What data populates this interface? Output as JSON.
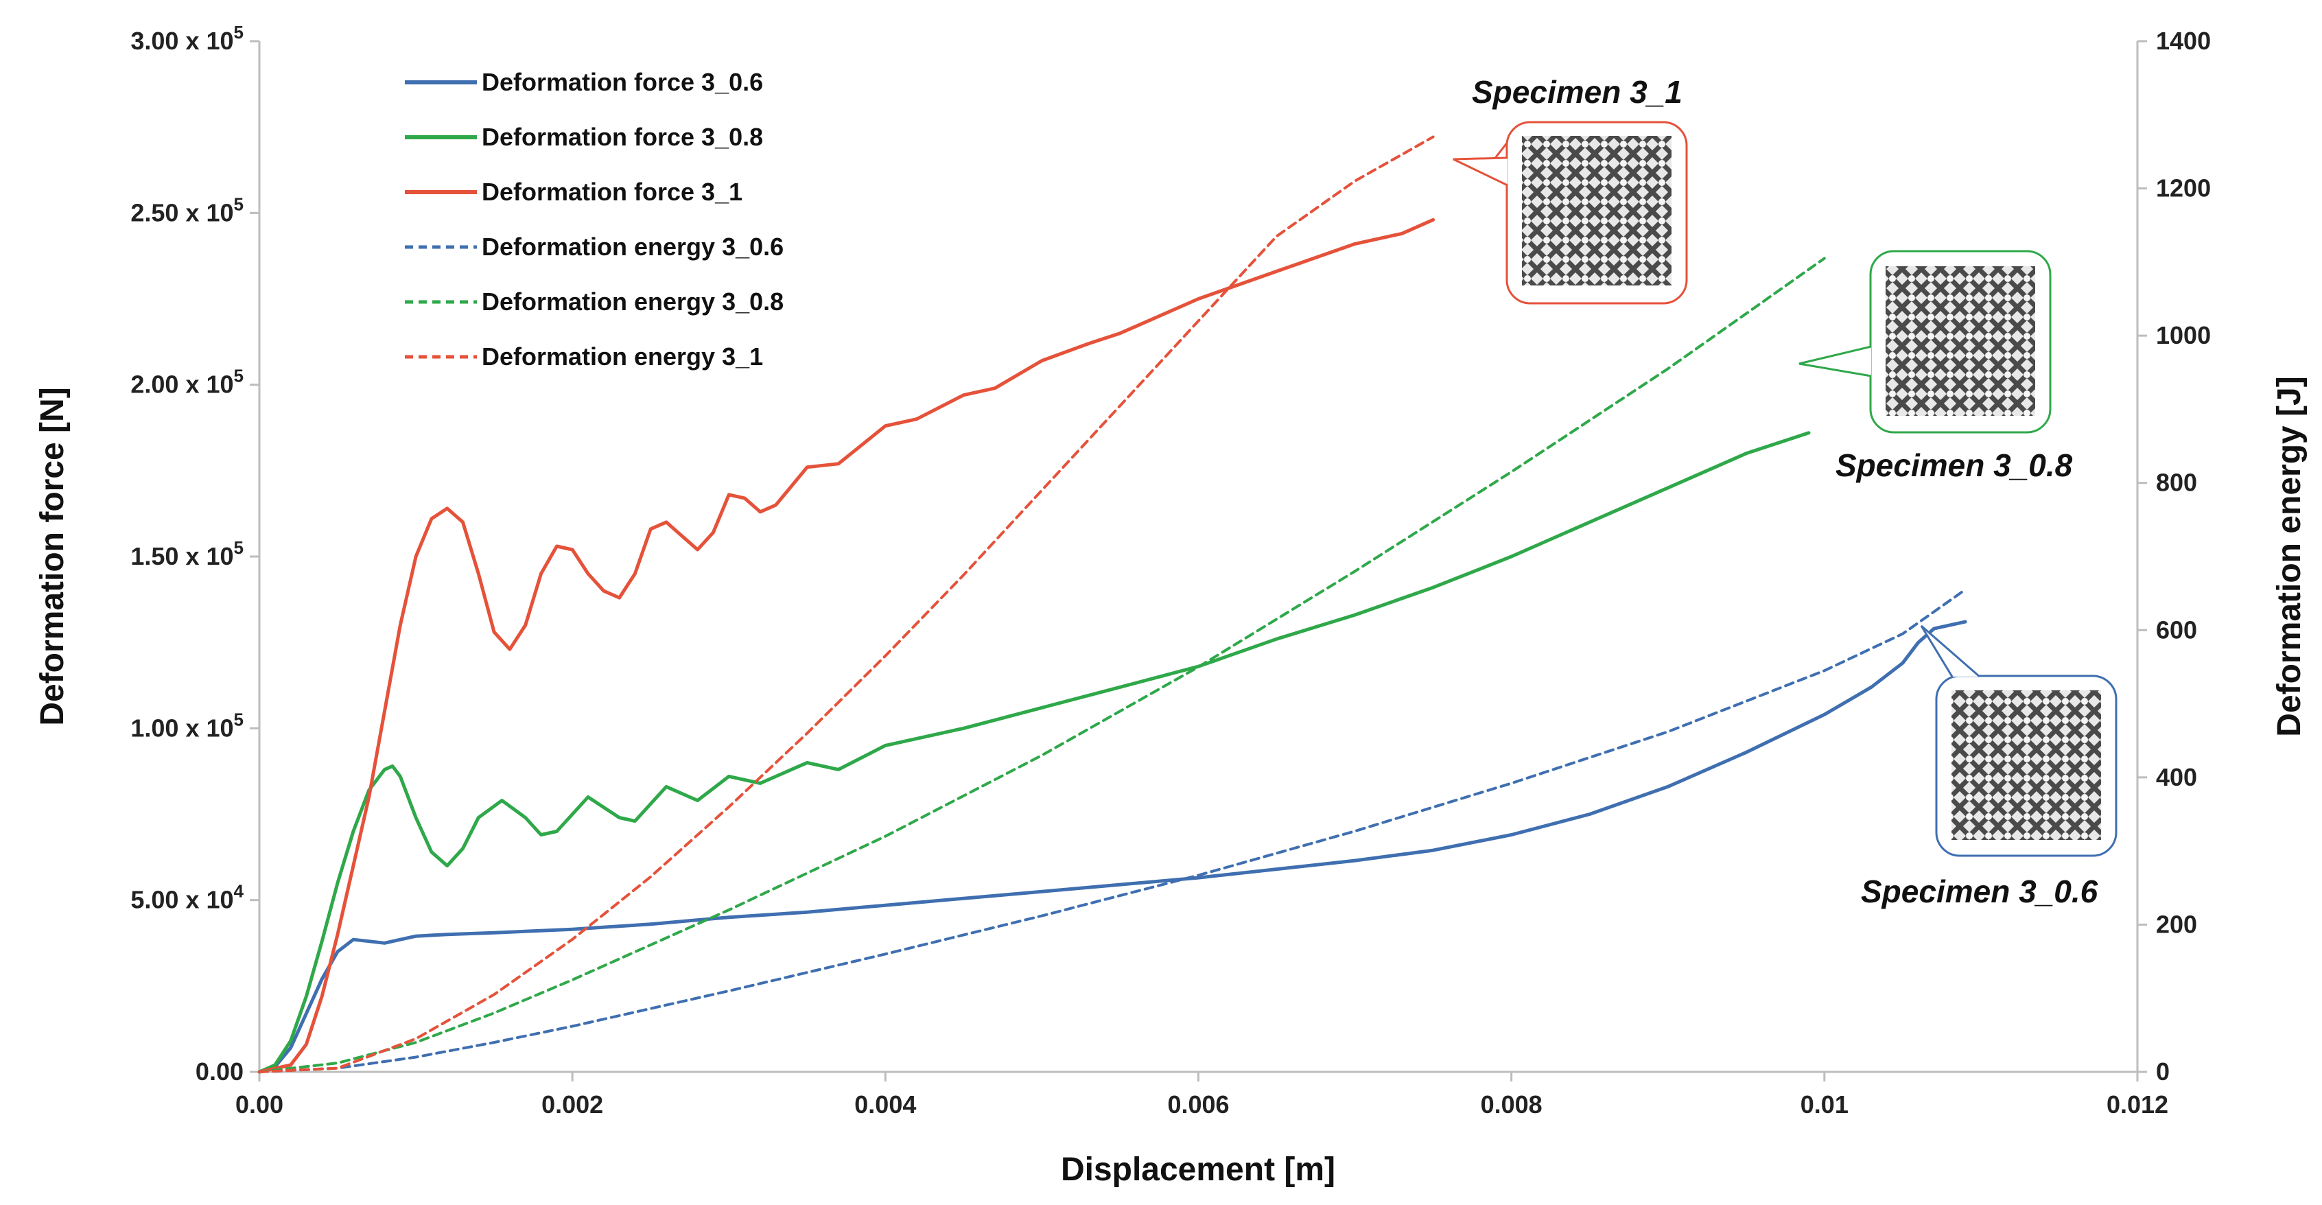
{
  "chart_data": {
    "type": "line",
    "xlabel": "Displacement [m]",
    "ylabel": "Deformation force [N]",
    "y2label": "Deformation energy [J]",
    "xlim": [
      0,
      0.012
    ],
    "ylim": [
      0,
      300000
    ],
    "y2lim": [
      0,
      1400
    ],
    "grid": false,
    "legend_position": "top-left",
    "x_ticks": [
      {
        "value": 0,
        "label": "0.00"
      },
      {
        "value": 0.002,
        "label": "0.002"
      },
      {
        "value": 0.004,
        "label": "0.004"
      },
      {
        "value": 0.006,
        "label": "0.006"
      },
      {
        "value": 0.008,
        "label": "0.008"
      },
      {
        "value": 0.01,
        "label": "0.01"
      },
      {
        "value": 0.012,
        "label": "0.012"
      }
    ],
    "y_ticks": [
      {
        "value": 0,
        "mant": "0.00",
        "exp": ""
      },
      {
        "value": 50000,
        "mant": "5.00 x 10",
        "exp": "4"
      },
      {
        "value": 100000,
        "mant": "1.00 x 10",
        "exp": "5"
      },
      {
        "value": 150000,
        "mant": "1.50 x 10",
        "exp": "5"
      },
      {
        "value": 200000,
        "mant": "2.00 x 10",
        "exp": "5"
      },
      {
        "value": 250000,
        "mant": "2.50 x 10",
        "exp": "5"
      },
      {
        "value": 300000,
        "mant": "3.00 x 10",
        "exp": "5"
      }
    ],
    "y2_ticks": [
      {
        "value": 0,
        "label": "0"
      },
      {
        "value": 200,
        "label": "200"
      },
      {
        "value": 400,
        "label": "400"
      },
      {
        "value": 600,
        "label": "600"
      },
      {
        "value": 800,
        "label": "800"
      },
      {
        "value": 1000,
        "label": "1000"
      },
      {
        "value": 1200,
        "label": "1200"
      },
      {
        "value": 1400,
        "label": "1400"
      }
    ],
    "series": [
      {
        "name": "Deformation force 3_0.6",
        "axis": "left",
        "color": "#3f6fb0",
        "dashed": false,
        "points": [
          [
            0,
            0
          ],
          [
            0.0001,
            1500
          ],
          [
            0.0002,
            7000
          ],
          [
            0.0003,
            17000
          ],
          [
            0.0004,
            27000
          ],
          [
            0.0005,
            35000
          ],
          [
            0.0006,
            38500
          ],
          [
            0.0007,
            38000
          ],
          [
            0.0008,
            37500
          ],
          [
            0.0009,
            38500
          ],
          [
            0.001,
            39500
          ],
          [
            0.0012,
            40000
          ],
          [
            0.0015,
            40500
          ],
          [
            0.002,
            41500
          ],
          [
            0.0025,
            43000
          ],
          [
            0.003,
            45000
          ],
          [
            0.0035,
            46500
          ],
          [
            0.004,
            48500
          ],
          [
            0.0045,
            50500
          ],
          [
            0.005,
            52500
          ],
          [
            0.0055,
            54500
          ],
          [
            0.006,
            56500
          ],
          [
            0.0065,
            59000
          ],
          [
            0.007,
            61500
          ],
          [
            0.0075,
            64500
          ],
          [
            0.008,
            69000
          ],
          [
            0.0085,
            75000
          ],
          [
            0.009,
            83000
          ],
          [
            0.0095,
            93000
          ],
          [
            0.01,
            104000
          ],
          [
            0.0103,
            112000
          ],
          [
            0.0105,
            119000
          ],
          [
            0.0106,
            125000
          ],
          [
            0.0107,
            129000
          ],
          [
            0.0108,
            130000
          ],
          [
            0.0109,
            131000
          ]
        ]
      },
      {
        "name": "Deformation force 3_0.8",
        "axis": "left",
        "color": "#2fa84a",
        "dashed": false,
        "points": [
          [
            0,
            0
          ],
          [
            0.0001,
            2000
          ],
          [
            0.0002,
            9000
          ],
          [
            0.0003,
            22000
          ],
          [
            0.0004,
            38000
          ],
          [
            0.0005,
            55000
          ],
          [
            0.0006,
            70000
          ],
          [
            0.0007,
            82000
          ],
          [
            0.0008,
            88000
          ],
          [
            0.00085,
            89000
          ],
          [
            0.0009,
            86000
          ],
          [
            0.001,
            74000
          ],
          [
            0.0011,
            64000
          ],
          [
            0.0012,
            60000
          ],
          [
            0.0013,
            65000
          ],
          [
            0.0014,
            74000
          ],
          [
            0.00155,
            79000
          ],
          [
            0.0017,
            74000
          ],
          [
            0.0018,
            69000
          ],
          [
            0.0019,
            70000
          ],
          [
            0.0021,
            80000
          ],
          [
            0.0023,
            74000
          ],
          [
            0.0024,
            73000
          ],
          [
            0.0026,
            83000
          ],
          [
            0.0028,
            79000
          ],
          [
            0.003,
            86000
          ],
          [
            0.0032,
            84000
          ],
          [
            0.0035,
            90000
          ],
          [
            0.0037,
            88000
          ],
          [
            0.004,
            95000
          ],
          [
            0.0045,
            100000
          ],
          [
            0.005,
            106000
          ],
          [
            0.0055,
            112000
          ],
          [
            0.006,
            118000
          ],
          [
            0.0065,
            126000
          ],
          [
            0.007,
            133000
          ],
          [
            0.0075,
            141000
          ],
          [
            0.008,
            150000
          ],
          [
            0.0085,
            160000
          ],
          [
            0.009,
            170000
          ],
          [
            0.0095,
            180000
          ],
          [
            0.0099,
            186000
          ]
        ]
      },
      {
        "name": "Deformation force 3_1",
        "axis": "left",
        "color": "#e5523a",
        "dashed": false,
        "points": [
          [
            0,
            0
          ],
          [
            0.0002,
            2000
          ],
          [
            0.0003,
            8000
          ],
          [
            0.0004,
            22000
          ],
          [
            0.0005,
            40000
          ],
          [
            0.0006,
            60000
          ],
          [
            0.0007,
            80000
          ],
          [
            0.0008,
            105000
          ],
          [
            0.0009,
            130000
          ],
          [
            0.001,
            150000
          ],
          [
            0.0011,
            161000
          ],
          [
            0.0012,
            164000
          ],
          [
            0.0013,
            160000
          ],
          [
            0.0014,
            145000
          ],
          [
            0.0015,
            128000
          ],
          [
            0.0016,
            123000
          ],
          [
            0.0017,
            130000
          ],
          [
            0.0018,
            145000
          ],
          [
            0.0019,
            153000
          ],
          [
            0.002,
            152000
          ],
          [
            0.0021,
            145000
          ],
          [
            0.0022,
            140000
          ],
          [
            0.0023,
            138000
          ],
          [
            0.0024,
            145000
          ],
          [
            0.0025,
            158000
          ],
          [
            0.0026,
            160000
          ],
          [
            0.0027,
            156000
          ],
          [
            0.0028,
            152000
          ],
          [
            0.0029,
            157000
          ],
          [
            0.003,
            168000
          ],
          [
            0.0031,
            167000
          ],
          [
            0.0032,
            163000
          ],
          [
            0.0033,
            165000
          ],
          [
            0.0035,
            176000
          ],
          [
            0.0037,
            177000
          ],
          [
            0.004,
            188000
          ],
          [
            0.0042,
            190000
          ],
          [
            0.0045,
            197000
          ],
          [
            0.0047,
            199000
          ],
          [
            0.005,
            207000
          ],
          [
            0.0053,
            212000
          ],
          [
            0.0055,
            215000
          ],
          [
            0.006,
            225000
          ],
          [
            0.0065,
            233000
          ],
          [
            0.007,
            241000
          ],
          [
            0.0073,
            244000
          ],
          [
            0.0075,
            248000
          ]
        ]
      },
      {
        "name": "Deformation energy 3_0.6",
        "axis": "right",
        "color": "#3f6fb0",
        "dashed": true,
        "points": [
          [
            0,
            0
          ],
          [
            0.0005,
            5
          ],
          [
            0.001,
            20
          ],
          [
            0.0015,
            40
          ],
          [
            0.002,
            62
          ],
          [
            0.003,
            110
          ],
          [
            0.004,
            160
          ],
          [
            0.005,
            212
          ],
          [
            0.006,
            267
          ],
          [
            0.007,
            327
          ],
          [
            0.008,
            392
          ],
          [
            0.009,
            462
          ],
          [
            0.01,
            545
          ],
          [
            0.0105,
            595
          ],
          [
            0.0109,
            655
          ]
        ]
      },
      {
        "name": "Deformation energy 3_0.8",
        "axis": "right",
        "color": "#2fa84a",
        "dashed": true,
        "points": [
          [
            0,
            0
          ],
          [
            0.0005,
            12
          ],
          [
            0.001,
            40
          ],
          [
            0.0015,
            80
          ],
          [
            0.002,
            125
          ],
          [
            0.003,
            220
          ],
          [
            0.004,
            320
          ],
          [
            0.005,
            430
          ],
          [
            0.006,
            550
          ],
          [
            0.007,
            680
          ],
          [
            0.008,
            815
          ],
          [
            0.009,
            955
          ],
          [
            0.0095,
            1030
          ],
          [
            0.01,
            1105
          ]
        ]
      },
      {
        "name": "Deformation energy 3_1",
        "axis": "right",
        "color": "#e5523a",
        "dashed": true,
        "points": [
          [
            0,
            0
          ],
          [
            0.0005,
            5
          ],
          [
            0.001,
            45
          ],
          [
            0.0015,
            105
          ],
          [
            0.002,
            180
          ],
          [
            0.0025,
            265
          ],
          [
            0.003,
            360
          ],
          [
            0.0035,
            460
          ],
          [
            0.004,
            565
          ],
          [
            0.0045,
            675
          ],
          [
            0.005,
            790
          ],
          [
            0.0055,
            905
          ],
          [
            0.006,
            1020
          ],
          [
            0.0065,
            1135
          ],
          [
            0.007,
            1210
          ],
          [
            0.0075,
            1270
          ]
        ]
      }
    ],
    "annotations": [
      {
        "label": "Specimen 3_1",
        "color": "#e5523a"
      },
      {
        "label": "Specimen 3_0.8",
        "color": "#2fa84a"
      },
      {
        "label": "Specimen 3_0.6",
        "color": "#3f6fb0"
      }
    ]
  }
}
